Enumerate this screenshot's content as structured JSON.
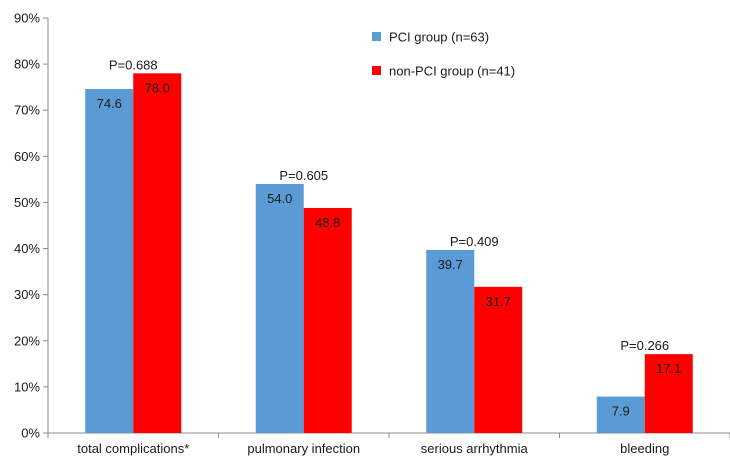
{
  "chart_data": {
    "type": "bar",
    "title": "",
    "xlabel": "",
    "ylabel": "",
    "ylim": [
      0,
      90
    ],
    "y_tick_step": 10,
    "y_tick_format": "percent",
    "grid": false,
    "legend_position": "top-right",
    "categories": [
      "total complications*",
      "pulmonary infection",
      "serious arrhythmia",
      "bleeding"
    ],
    "series": [
      {
        "name": "PCI group (n=63)",
        "color": "#5b9bd5",
        "values": [
          74.6,
          54.0,
          39.7,
          7.9
        ],
        "labels": [
          "74.6",
          "54.0",
          "39.7",
          "7.9"
        ]
      },
      {
        "name": "non-PCI group (n=41)",
        "color": "#ff0000",
        "values": [
          78.0,
          48.8,
          31.7,
          17.1
        ],
        "labels": [
          "78.0",
          "48.8",
          "31.7",
          "17.1"
        ]
      }
    ],
    "p_values": [
      "P=0.688",
      "P=0.605",
      "P=0.409",
      "P=0.266"
    ]
  }
}
